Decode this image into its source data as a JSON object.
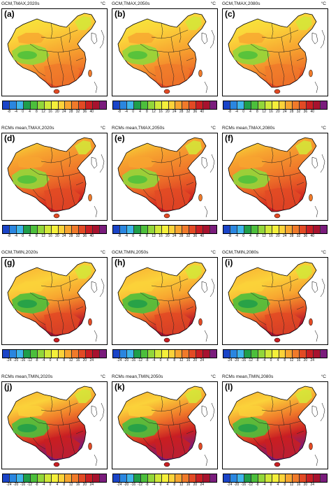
{
  "figure": {
    "panels": [
      {
        "letter": "(a)",
        "title": "GCM,TMAX,2020s",
        "unit": "°C",
        "scale": "tmax",
        "variable": "TMAX",
        "source": "GCM"
      },
      {
        "letter": "(b)",
        "title": "GCM,TMAX,2050s",
        "unit": "°C",
        "scale": "tmax",
        "variable": "TMAX",
        "source": "GCM"
      },
      {
        "letter": "(c)",
        "title": "GCM,TMAX,2080s",
        "unit": "°C",
        "scale": "tmax",
        "variable": "TMAX",
        "source": "GCM"
      },
      {
        "letter": "(d)",
        "title": "RCMs mean,TMAX,2020s",
        "unit": "°C",
        "scale": "tmax",
        "variable": "TMAX",
        "source": "RCM"
      },
      {
        "letter": "(e)",
        "title": "RCMs mean,TMAX,2050s",
        "unit": "°C",
        "scale": "tmax",
        "variable": "TMAX",
        "source": "RCM"
      },
      {
        "letter": "(f)",
        "title": "RCMs mean,TMAX,2080s",
        "unit": "°C",
        "scale": "tmax",
        "variable": "TMAX",
        "source": "RCM"
      },
      {
        "letter": "(g)",
        "title": "GCM,TMIN,2020s",
        "unit": "°C",
        "scale": "tmin",
        "variable": "TMIN",
        "source": "GCM"
      },
      {
        "letter": "(h)",
        "title": "GCM,TMIN,2050s",
        "unit": "°C",
        "scale": "tmin",
        "variable": "TMIN",
        "source": "GCM"
      },
      {
        "letter": "(i)",
        "title": "GCM,TMIN,2080s",
        "unit": "°C",
        "scale": "tmin",
        "variable": "TMIN",
        "source": "GCM"
      },
      {
        "letter": "(j)",
        "title": "RCMs mean,TMIN,2020s",
        "unit": "°C",
        "scale": "tmin",
        "variable": "TMIN",
        "source": "RCM"
      },
      {
        "letter": "(k)",
        "title": "RCMs mean,TMIN,2050s",
        "unit": "°C",
        "scale": "tmin",
        "variable": "TMIN",
        "source": "RCM"
      },
      {
        "letter": "(l)",
        "title": "RCMs mean,TMIN,2080s",
        "unit": "°C",
        "scale": "tmin",
        "variable": "TMIN",
        "source": "RCM"
      }
    ],
    "colorbars": {
      "tmax": [
        "-8",
        "-4",
        "0",
        "4",
        "8",
        "12",
        "16",
        "20",
        "24",
        "28",
        "32",
        "36",
        "40"
      ],
      "tmin": [
        "-24",
        "-20",
        "-16",
        "-12",
        "-8",
        "-4",
        "0",
        "4",
        "8",
        "12",
        "16",
        "20",
        "24"
      ]
    },
    "palette": [
      "#1a44c8",
      "#2a86e0",
      "#3fb6ea",
      "#1e9e4a",
      "#4cbf3c",
      "#92d63a",
      "#d2e838",
      "#f4ef3a",
      "#fbd23a",
      "#f7a530",
      "#f07a2a",
      "#e24a24",
      "#c91e22",
      "#a8122e",
      "#7a1c7c"
    ]
  }
}
